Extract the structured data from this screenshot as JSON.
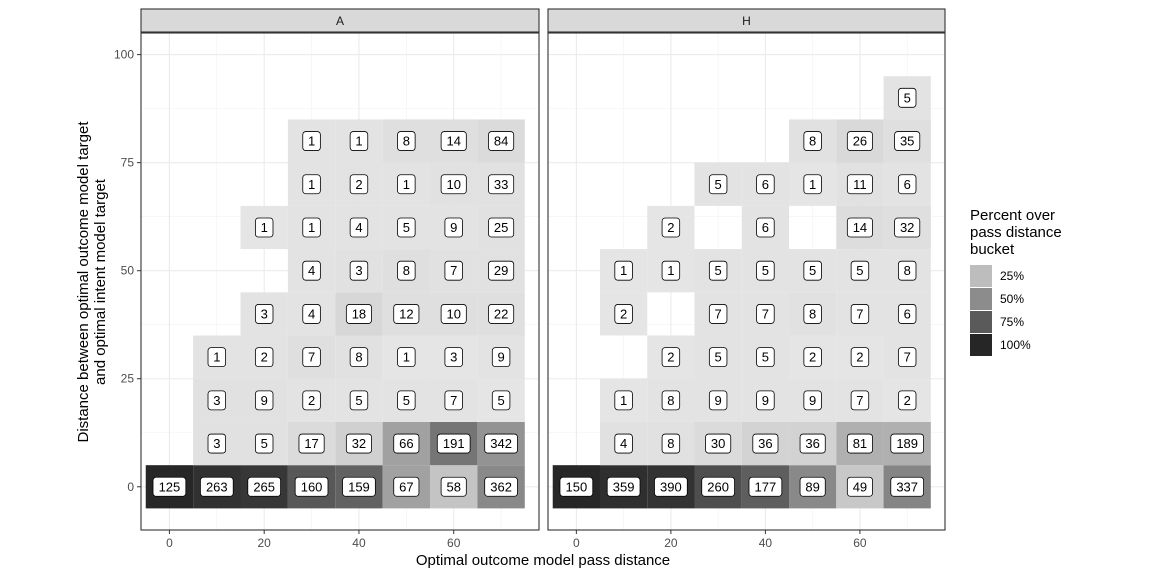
{
  "chart_data": {
    "type": "heatmap",
    "xlabel": "Optimal outcome model pass distance",
    "ylabel_lines": [
      "Distance between optimal outcome model target",
      "and optimal intent model target"
    ],
    "xticks": [
      0,
      20,
      40,
      60
    ],
    "yticks": [
      0,
      25,
      50,
      75,
      100
    ],
    "xlim": [
      -6,
      78
    ],
    "ylim": [
      -10,
      105
    ],
    "legend": {
      "title_lines": [
        "Percent over",
        "pass distance",
        "bucket"
      ],
      "entries": [
        {
          "label": "25%",
          "color": "#bdbdbd"
        },
        {
          "label": "50%",
          "color": "#8c8c8c"
        },
        {
          "label": "75%",
          "color": "#5a5a5a"
        },
        {
          "label": "100%",
          "color": "#262626"
        }
      ],
      "placement": "right"
    },
    "panels": [
      {
        "strip": "A",
        "cells": [
          {
            "x": 0,
            "y": 0,
            "count": 125,
            "pct": 1.0
          },
          {
            "x": 10,
            "y": 0,
            "count": 263,
            "pct": 0.95
          },
          {
            "x": 20,
            "y": 0,
            "count": 265,
            "pct": 0.92
          },
          {
            "x": 30,
            "y": 0,
            "count": 160,
            "pct": 0.75
          },
          {
            "x": 40,
            "y": 0,
            "count": 159,
            "pct": 0.7
          },
          {
            "x": 50,
            "y": 0,
            "count": 67,
            "pct": 0.38
          },
          {
            "x": 60,
            "y": 0,
            "count": 58,
            "pct": 0.2
          },
          {
            "x": 70,
            "y": 0,
            "count": 362,
            "pct": 0.5
          },
          {
            "x": 10,
            "y": 10,
            "count": 3,
            "pct": 0.05
          },
          {
            "x": 20,
            "y": 10,
            "count": 5,
            "pct": 0.05
          },
          {
            "x": 30,
            "y": 10,
            "count": 17,
            "pct": 0.08
          },
          {
            "x": 40,
            "y": 10,
            "count": 32,
            "pct": 0.14
          },
          {
            "x": 50,
            "y": 10,
            "count": 66,
            "pct": 0.38
          },
          {
            "x": 60,
            "y": 10,
            "count": 191,
            "pct": 0.6
          },
          {
            "x": 70,
            "y": 10,
            "count": 342,
            "pct": 0.45
          },
          {
            "x": 10,
            "y": 20,
            "count": 3,
            "pct": 0.05
          },
          {
            "x": 20,
            "y": 20,
            "count": 9,
            "pct": 0.05
          },
          {
            "x": 30,
            "y": 20,
            "count": 2,
            "pct": 0.04
          },
          {
            "x": 40,
            "y": 20,
            "count": 5,
            "pct": 0.04
          },
          {
            "x": 50,
            "y": 20,
            "count": 5,
            "pct": 0.04
          },
          {
            "x": 60,
            "y": 20,
            "count": 7,
            "pct": 0.04
          },
          {
            "x": 70,
            "y": 20,
            "count": 5,
            "pct": 0.03
          },
          {
            "x": 10,
            "y": 30,
            "count": 1,
            "pct": 0.04
          },
          {
            "x": 20,
            "y": 30,
            "count": 2,
            "pct": 0.04
          },
          {
            "x": 30,
            "y": 30,
            "count": 7,
            "pct": 0.06
          },
          {
            "x": 40,
            "y": 30,
            "count": 8,
            "pct": 0.05
          },
          {
            "x": 50,
            "y": 30,
            "count": 1,
            "pct": 0.03
          },
          {
            "x": 60,
            "y": 30,
            "count": 3,
            "pct": 0.03
          },
          {
            "x": 70,
            "y": 30,
            "count": 9,
            "pct": 0.04
          },
          {
            "x": 20,
            "y": 40,
            "count": 3,
            "pct": 0.04
          },
          {
            "x": 30,
            "y": 40,
            "count": 4,
            "pct": 0.04
          },
          {
            "x": 40,
            "y": 40,
            "count": 18,
            "pct": 0.1
          },
          {
            "x": 50,
            "y": 40,
            "count": 12,
            "pct": 0.06
          },
          {
            "x": 60,
            "y": 40,
            "count": 10,
            "pct": 0.06
          },
          {
            "x": 70,
            "y": 40,
            "count": 22,
            "pct": 0.06
          },
          {
            "x": 30,
            "y": 50,
            "count": 4,
            "pct": 0.04
          },
          {
            "x": 40,
            "y": 50,
            "count": 3,
            "pct": 0.05
          },
          {
            "x": 50,
            "y": 50,
            "count": 8,
            "pct": 0.06
          },
          {
            "x": 60,
            "y": 50,
            "count": 7,
            "pct": 0.05
          },
          {
            "x": 70,
            "y": 50,
            "count": 29,
            "pct": 0.05
          },
          {
            "x": 20,
            "y": 60,
            "count": 1,
            "pct": 0.03
          },
          {
            "x": 30,
            "y": 60,
            "count": 1,
            "pct": 0.04
          },
          {
            "x": 40,
            "y": 60,
            "count": 4,
            "pct": 0.04
          },
          {
            "x": 50,
            "y": 60,
            "count": 5,
            "pct": 0.04
          },
          {
            "x": 60,
            "y": 60,
            "count": 9,
            "pct": 0.04
          },
          {
            "x": 70,
            "y": 60,
            "count": 25,
            "pct": 0.05
          },
          {
            "x": 30,
            "y": 70,
            "count": 1,
            "pct": 0.04
          },
          {
            "x": 40,
            "y": 70,
            "count": 2,
            "pct": 0.04
          },
          {
            "x": 50,
            "y": 70,
            "count": 1,
            "pct": 0.04
          },
          {
            "x": 60,
            "y": 70,
            "count": 10,
            "pct": 0.05
          },
          {
            "x": 70,
            "y": 70,
            "count": 33,
            "pct": 0.05
          },
          {
            "x": 30,
            "y": 80,
            "count": 1,
            "pct": 0.04
          },
          {
            "x": 40,
            "y": 80,
            "count": 1,
            "pct": 0.04
          },
          {
            "x": 50,
            "y": 80,
            "count": 8,
            "pct": 0.06
          },
          {
            "x": 60,
            "y": 80,
            "count": 14,
            "pct": 0.06
          },
          {
            "x": 70,
            "y": 80,
            "count": 84,
            "pct": 0.08
          }
        ]
      },
      {
        "strip": "H",
        "cells": [
          {
            "x": 0,
            "y": 0,
            "count": 150,
            "pct": 1.0
          },
          {
            "x": 10,
            "y": 0,
            "count": 359,
            "pct": 0.96
          },
          {
            "x": 20,
            "y": 0,
            "count": 390,
            "pct": 0.94
          },
          {
            "x": 30,
            "y": 0,
            "count": 260,
            "pct": 0.8
          },
          {
            "x": 40,
            "y": 0,
            "count": 177,
            "pct": 0.72
          },
          {
            "x": 50,
            "y": 0,
            "count": 89,
            "pct": 0.5
          },
          {
            "x": 60,
            "y": 0,
            "count": 49,
            "pct": 0.18
          },
          {
            "x": 70,
            "y": 0,
            "count": 337,
            "pct": 0.52
          },
          {
            "x": 10,
            "y": 10,
            "count": 4,
            "pct": 0.05
          },
          {
            "x": 20,
            "y": 10,
            "count": 8,
            "pct": 0.05
          },
          {
            "x": 30,
            "y": 10,
            "count": 30,
            "pct": 0.08
          },
          {
            "x": 40,
            "y": 10,
            "count": 36,
            "pct": 0.12
          },
          {
            "x": 50,
            "y": 10,
            "count": 36,
            "pct": 0.13
          },
          {
            "x": 60,
            "y": 10,
            "count": 81,
            "pct": 0.3
          },
          {
            "x": 70,
            "y": 10,
            "count": 189,
            "pct": 0.3
          },
          {
            "x": 10,
            "y": 20,
            "count": 1,
            "pct": 0.03
          },
          {
            "x": 20,
            "y": 20,
            "count": 8,
            "pct": 0.04
          },
          {
            "x": 30,
            "y": 20,
            "count": 9,
            "pct": 0.04
          },
          {
            "x": 40,
            "y": 20,
            "count": 9,
            "pct": 0.04
          },
          {
            "x": 50,
            "y": 20,
            "count": 9,
            "pct": 0.04
          },
          {
            "x": 60,
            "y": 20,
            "count": 7,
            "pct": 0.04
          },
          {
            "x": 70,
            "y": 20,
            "count": 2,
            "pct": 0.03
          },
          {
            "x": 20,
            "y": 30,
            "count": 2,
            "pct": 0.03
          },
          {
            "x": 30,
            "y": 30,
            "count": 5,
            "pct": 0.04
          },
          {
            "x": 40,
            "y": 30,
            "count": 5,
            "pct": 0.04
          },
          {
            "x": 50,
            "y": 30,
            "count": 2,
            "pct": 0.03
          },
          {
            "x": 60,
            "y": 30,
            "count": 2,
            "pct": 0.03
          },
          {
            "x": 70,
            "y": 30,
            "count": 7,
            "pct": 0.04
          },
          {
            "x": 10,
            "y": 40,
            "count": 2,
            "pct": 0.03
          },
          {
            "x": 30,
            "y": 40,
            "count": 7,
            "pct": 0.04
          },
          {
            "x": 40,
            "y": 40,
            "count": 7,
            "pct": 0.04
          },
          {
            "x": 50,
            "y": 40,
            "count": 8,
            "pct": 0.05
          },
          {
            "x": 60,
            "y": 40,
            "count": 7,
            "pct": 0.04
          },
          {
            "x": 70,
            "y": 40,
            "count": 6,
            "pct": 0.04
          },
          {
            "x": 10,
            "y": 50,
            "count": 1,
            "pct": 0.03
          },
          {
            "x": 20,
            "y": 50,
            "count": 1,
            "pct": 0.03
          },
          {
            "x": 30,
            "y": 50,
            "count": 5,
            "pct": 0.04
          },
          {
            "x": 40,
            "y": 50,
            "count": 5,
            "pct": 0.04
          },
          {
            "x": 50,
            "y": 50,
            "count": 5,
            "pct": 0.04
          },
          {
            "x": 60,
            "y": 50,
            "count": 5,
            "pct": 0.04
          },
          {
            "x": 70,
            "y": 50,
            "count": 8,
            "pct": 0.04
          },
          {
            "x": 20,
            "y": 60,
            "count": 2,
            "pct": 0.03
          },
          {
            "x": 40,
            "y": 60,
            "count": 6,
            "pct": 0.04
          },
          {
            "x": 60,
            "y": 60,
            "count": 14,
            "pct": 0.07
          },
          {
            "x": 70,
            "y": 60,
            "count": 32,
            "pct": 0.06
          },
          {
            "x": 30,
            "y": 70,
            "count": 5,
            "pct": 0.04
          },
          {
            "x": 40,
            "y": 70,
            "count": 6,
            "pct": 0.04
          },
          {
            "x": 50,
            "y": 70,
            "count": 1,
            "pct": 0.03
          },
          {
            "x": 60,
            "y": 70,
            "count": 11,
            "pct": 0.05
          },
          {
            "x": 70,
            "y": 70,
            "count": 6,
            "pct": 0.04
          },
          {
            "x": 50,
            "y": 80,
            "count": 8,
            "pct": 0.05
          },
          {
            "x": 60,
            "y": 80,
            "count": 26,
            "pct": 0.09
          },
          {
            "x": 70,
            "y": 80,
            "count": 35,
            "pct": 0.06
          },
          {
            "x": 70,
            "y": 90,
            "count": 5,
            "pct": 0.04
          }
        ]
      }
    ]
  }
}
